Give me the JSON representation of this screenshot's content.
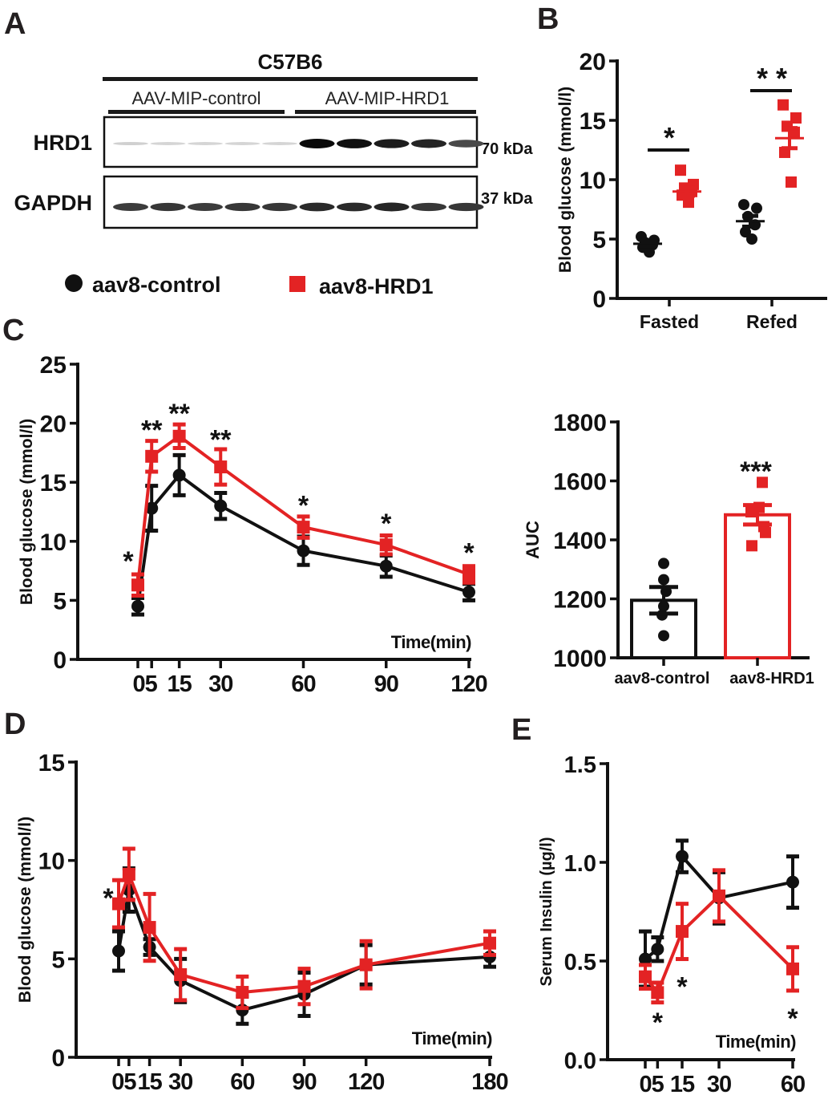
{
  "colors": {
    "control": "#111111",
    "hrd1": "#e32324"
  },
  "legend": {
    "control_label": "aav8-control",
    "hrd1_label": "aav8-HRD1"
  },
  "panel_a": {
    "letter": "A",
    "strain": "C57B6",
    "group_control": "AAV-MIP-control",
    "group_hrd1": "AAV-MIP-HRD1",
    "blots": [
      {
        "label": "HRD1",
        "size": "70 kDa",
        "intensities": [
          0.12,
          0.1,
          0.1,
          0.1,
          0.1,
          1.0,
          0.98,
          0.92,
          0.88,
          0.72
        ]
      },
      {
        "label": "GAPDH",
        "size": "37 kDa",
        "intensities": [
          0.78,
          0.8,
          0.78,
          0.8,
          0.8,
          0.86,
          0.86,
          0.88,
          0.8,
          0.8
        ]
      }
    ]
  },
  "chart_data": [
    {
      "id": "B",
      "letter": "B",
      "type": "scatter",
      "title": "",
      "xlabel": "",
      "ylabel": "Blood glucose (mmol/l)",
      "ylim": [
        0,
        20
      ],
      "yticks": [
        "0",
        "5",
        "10",
        "15",
        "20"
      ],
      "categories": [
        "Fasted",
        "Refed"
      ],
      "series": [
        {
          "name": "aav8-control",
          "groups": [
            {
              "category": "Fasted",
              "points": [
                5.2,
                4.9,
                4.7,
                4.5,
                4.3,
                3.9
              ],
              "mean": 4.6,
              "sem": 0.2
            },
            {
              "category": "Refed",
              "points": [
                7.9,
                7.6,
                6.9,
                6.2,
                5.6,
                5.0
              ],
              "mean": 6.5,
              "sem": 0.45
            }
          ]
        },
        {
          "name": "aav8-HRD1",
          "groups": [
            {
              "category": "Fasted",
              "points": [
                10.8,
                9.6,
                9.3,
                9.0,
                8.7,
                8.1
              ],
              "mean": 9.0,
              "sem": 0.35
            },
            {
              "category": "Refed",
              "points": [
                16.3,
                15.2,
                14.5,
                14.0,
                12.3,
                9.8
              ],
              "mean": 13.5,
              "sem": 0.85
            }
          ]
        }
      ],
      "annotations": [
        {
          "category": "Fasted",
          "text": "*",
          "y": 12.5
        },
        {
          "category": "Refed",
          "text": "* *",
          "y": 17.5
        }
      ]
    },
    {
      "id": "C",
      "letter": "C",
      "type": "line",
      "title": "",
      "xlabel": "Time(min)",
      "ylabel": "Blood glucose (mmol/l)",
      "ylim": [
        0,
        25
      ],
      "yticks": [
        "0",
        "5",
        "10",
        "15",
        "20",
        "25"
      ],
      "x": [
        0,
        5,
        15,
        30,
        60,
        90,
        120
      ],
      "xtick_labels": [
        "05",
        "15",
        "30",
        "60",
        "90",
        "120"
      ],
      "series": [
        {
          "name": "aav8-control",
          "values": [
            4.5,
            12.8,
            15.6,
            13.0,
            9.2,
            7.9,
            5.7
          ],
          "errors": [
            0.7,
            1.9,
            1.7,
            1.1,
            1.2,
            0.9,
            0.7
          ]
        },
        {
          "name": "aav8-HRD1",
          "values": [
            6.3,
            17.2,
            18.9,
            16.3,
            11.2,
            9.7,
            7.2
          ],
          "errors": [
            0.9,
            1.3,
            1.0,
            1.5,
            0.9,
            0.8,
            0.7
          ]
        }
      ],
      "annotations": [
        {
          "x": 0,
          "text": "*",
          "y": 8.5
        },
        {
          "x": 5,
          "text": "**",
          "y": 19.6
        },
        {
          "x": 15,
          "text": "**",
          "y": 21.0
        },
        {
          "x": 30,
          "text": "**",
          "y": 18.8
        },
        {
          "x": 60,
          "text": "*",
          "y": 13.2
        },
        {
          "x": 90,
          "text": "*",
          "y": 11.7
        },
        {
          "x": 120,
          "text": "*",
          "y": 9.2
        }
      ]
    },
    {
      "id": "AUC",
      "type": "bar",
      "title": "",
      "xlabel": "",
      "ylabel": "AUC",
      "ylim": [
        1000,
        1800
      ],
      "yticks": [
        "1000",
        "1200",
        "1400",
        "1600",
        "1800"
      ],
      "categories": [
        "aav8-control",
        "aav8-HRD1"
      ],
      "values": [
        1195,
        1485
      ],
      "errors": [
        45,
        33
      ],
      "points": [
        [
          1320,
          1265,
          1225,
          1175,
          1145,
          1075
        ],
        [
          1595,
          1510,
          1495,
          1445,
          1425,
          1380
        ]
      ],
      "annotations": [
        {
          "category": "aav8-HRD1",
          "text": "***",
          "y": 1640
        }
      ]
    },
    {
      "id": "D",
      "letter": "D",
      "type": "line",
      "title": "",
      "xlabel": "Time(min)",
      "ylabel": "Blood glucose (mmol/l)",
      "ylim": [
        0,
        15
      ],
      "yticks": [
        "0",
        "5",
        "10",
        "15"
      ],
      "x": [
        0,
        5,
        15,
        30,
        60,
        90,
        120,
        180
      ],
      "xtick_labels": [
        "05",
        "15",
        "30",
        "60",
        "90",
        "120",
        "180"
      ],
      "series": [
        {
          "name": "aav8-control",
          "values": [
            5.4,
            8.5,
            5.6,
            3.9,
            2.4,
            3.2,
            4.7,
            5.1
          ],
          "errors": [
            1.0,
            1.1,
            0.4,
            1.1,
            0.7,
            1.1,
            1.0,
            0.5
          ]
        },
        {
          "name": "aav8-HRD1",
          "values": [
            7.8,
            9.3,
            6.6,
            4.2,
            3.3,
            3.6,
            4.7,
            5.8
          ],
          "errors": [
            1.2,
            1.3,
            1.7,
            1.3,
            0.8,
            0.9,
            1.2,
            0.6
          ]
        }
      ],
      "annotations": [
        {
          "x": 0,
          "text": "*",
          "y": 8.2
        }
      ]
    },
    {
      "id": "E",
      "letter": "E",
      "type": "line",
      "title": "",
      "xlabel": "Time(min)",
      "ylabel": "Serum Insulin (µg/l)",
      "ylim": [
        0,
        1.5
      ],
      "yticks": [
        "0.0",
        "0.5",
        "1.0",
        "1.5"
      ],
      "x": [
        0,
        5,
        15,
        30,
        60
      ],
      "xtick_labels": [
        "05",
        "15",
        "30",
        "60"
      ],
      "series": [
        {
          "name": "aav8-control",
          "values": [
            0.51,
            0.56,
            1.03,
            0.82,
            0.9
          ],
          "errors": [
            0.14,
            0.06,
            0.08,
            0.13,
            0.13
          ]
        },
        {
          "name": "aav8-HRD1",
          "values": [
            0.42,
            0.34,
            0.65,
            0.83,
            0.46
          ],
          "errors": [
            0.06,
            0.05,
            0.14,
            0.13,
            0.11
          ]
        }
      ],
      "annotations": [
        {
          "x": 5,
          "text": "*",
          "y": 0.2
        },
        {
          "x": 15,
          "text": "*",
          "y": 0.38
        },
        {
          "x": 60,
          "text": "*",
          "y": 0.22
        }
      ]
    }
  ]
}
